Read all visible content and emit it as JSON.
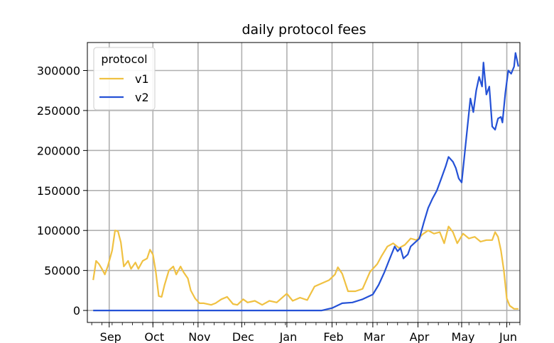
{
  "chart_data": {
    "type": "line",
    "title": "daily protocol fees",
    "xlabel": "",
    "ylabel": "",
    "x_ticks": [
      "Sep",
      "Oct",
      "Nov",
      "Dec",
      "Jan",
      "Feb",
      "Mar",
      "Apr",
      "May",
      "Jun"
    ],
    "y_ticks": [
      "0",
      "50000",
      "100000",
      "150000",
      "200000",
      "250000",
      "300000"
    ],
    "ylim": [
      -15000,
      335000
    ],
    "grid": true,
    "legend": {
      "title": "protocol",
      "placement": "top-left"
    },
    "series": [
      {
        "name": "v1",
        "color": "#f0c142",
        "points": [
          [
            "Aug 21",
            38000
          ],
          [
            "Aug 23",
            62000
          ],
          [
            "Aug 25",
            58000
          ],
          [
            "Aug 27",
            52000
          ],
          [
            "Aug 29",
            45000
          ],
          [
            "Aug 31",
            55000
          ],
          [
            "Sep 3",
            75000
          ],
          [
            "Sep 5",
            100000
          ],
          [
            "Sep 7",
            99000
          ],
          [
            "Sep 9",
            85000
          ],
          [
            "Sep 11",
            55000
          ],
          [
            "Sep 14",
            62000
          ],
          [
            "Sep 16",
            52000
          ],
          [
            "Sep 19",
            60000
          ],
          [
            "Sep 21",
            52000
          ],
          [
            "Sep 24",
            62000
          ],
          [
            "Sep 27",
            65000
          ],
          [
            "Sep 29",
            76000
          ],
          [
            "Oct 1",
            70000
          ],
          [
            "Oct 3",
            48000
          ],
          [
            "Oct 5",
            18000
          ],
          [
            "Oct 7",
            17000
          ],
          [
            "Oct 9",
            32000
          ],
          [
            "Oct 12",
            50000
          ],
          [
            "Oct 15",
            55000
          ],
          [
            "Oct 17",
            45000
          ],
          [
            "Oct 20",
            55000
          ],
          [
            "Oct 22",
            48000
          ],
          [
            "Oct 25",
            40000
          ],
          [
            "Oct 27",
            25000
          ],
          [
            "Oct 30",
            15000
          ],
          [
            "Nov 2",
            9000
          ],
          [
            "Nov 5",
            9000
          ],
          [
            "Nov 10",
            7000
          ],
          [
            "Nov 13",
            9000
          ],
          [
            "Nov 17",
            14000
          ],
          [
            "Nov 21",
            17000
          ],
          [
            "Nov 25",
            8000
          ],
          [
            "Nov 28",
            7000
          ],
          [
            "Dec 2",
            14000
          ],
          [
            "Dec 5",
            10000
          ],
          [
            "Dec 10",
            12000
          ],
          [
            "Dec 15",
            7000
          ],
          [
            "Dec 20",
            12000
          ],
          [
            "Dec 25",
            10000
          ],
          [
            "Dec 30",
            18000
          ],
          [
            "Jan 1",
            21000
          ],
          [
            "Jan 5",
            12000
          ],
          [
            "Jan 10",
            16000
          ],
          [
            "Jan 15",
            13000
          ],
          [
            "Jan 20",
            30000
          ],
          [
            "Jan 25",
            34000
          ],
          [
            "Jan 30",
            38000
          ],
          [
            "Feb 3",
            45000
          ],
          [
            "Feb 5",
            54000
          ],
          [
            "Feb 8",
            46000
          ],
          [
            "Feb 12",
            24000
          ],
          [
            "Feb 17",
            24000
          ],
          [
            "Feb 22",
            27000
          ],
          [
            "Feb 27",
            48000
          ],
          [
            "Mar 4",
            58000
          ],
          [
            "Mar 7",
            68000
          ],
          [
            "Mar 11",
            80000
          ],
          [
            "Mar 15",
            84000
          ],
          [
            "Mar 19",
            78000
          ],
          [
            "Mar 23",
            82000
          ],
          [
            "Mar 27",
            90000
          ],
          [
            "Mar 31",
            88000
          ],
          [
            "Apr 4",
            95000
          ],
          [
            "Apr 8",
            100000
          ],
          [
            "Apr 12",
            96000
          ],
          [
            "Apr 16",
            98000
          ],
          [
            "Apr 19",
            84000
          ],
          [
            "Apr 22",
            105000
          ],
          [
            "Apr 25",
            98000
          ],
          [
            "Apr 28",
            84000
          ],
          [
            "May 2",
            96000
          ],
          [
            "May 6",
            90000
          ],
          [
            "May 10",
            92000
          ],
          [
            "May 14",
            86000
          ],
          [
            "May 18",
            88000
          ],
          [
            "May 22",
            88000
          ],
          [
            "May 24",
            98000
          ],
          [
            "May 26",
            92000
          ],
          [
            "May 28",
            75000
          ],
          [
            "May 30",
            50000
          ],
          [
            "Jun 1",
            15000
          ],
          [
            "Jun 3",
            6000
          ],
          [
            "Jun 6",
            2000
          ],
          [
            "Jun 9",
            2000
          ]
        ]
      },
      {
        "name": "v2",
        "color": "#2451d6",
        "points": [
          [
            "Aug 21",
            0
          ],
          [
            "Jan 25",
            0
          ],
          [
            "Feb 1",
            3000
          ],
          [
            "Feb 8",
            9000
          ],
          [
            "Feb 15",
            10000
          ],
          [
            "Feb 22",
            14000
          ],
          [
            "Mar 1",
            20000
          ],
          [
            "Mar 5",
            32000
          ],
          [
            "Mar 9",
            48000
          ],
          [
            "Mar 12",
            62000
          ],
          [
            "Mar 16",
            80000
          ],
          [
            "Mar 18",
            74000
          ],
          [
            "Mar 20",
            78000
          ],
          [
            "Mar 22",
            65000
          ],
          [
            "Mar 25",
            70000
          ],
          [
            "Mar 27",
            80000
          ],
          [
            "Mar 30",
            85000
          ],
          [
            "Apr 2",
            90000
          ],
          [
            "Apr 5",
            110000
          ],
          [
            "Apr 8",
            128000
          ],
          [
            "Apr 11",
            140000
          ],
          [
            "Apr 14",
            150000
          ],
          [
            "Apr 17",
            165000
          ],
          [
            "Apr 20",
            180000
          ],
          [
            "Apr 22",
            192000
          ],
          [
            "Apr 25",
            186000
          ],
          [
            "Apr 27",
            178000
          ],
          [
            "Apr 29",
            165000
          ],
          [
            "May 1",
            160000
          ],
          [
            "May 3",
            195000
          ],
          [
            "May 5",
            230000
          ],
          [
            "May 7",
            265000
          ],
          [
            "May 9",
            248000
          ],
          [
            "May 11",
            275000
          ],
          [
            "May 13",
            292000
          ],
          [
            "May 15",
            280000
          ],
          [
            "May 16",
            310000
          ],
          [
            "May 18",
            270000
          ],
          [
            "May 20",
            280000
          ],
          [
            "May 22",
            230000
          ],
          [
            "May 24",
            226000
          ],
          [
            "May 26",
            240000
          ],
          [
            "May 28",
            242000
          ],
          [
            "May 29",
            235000
          ],
          [
            "May 31",
            272000
          ],
          [
            "Jun 2",
            300000
          ],
          [
            "Jun 4",
            296000
          ],
          [
            "Jun 6",
            305000
          ],
          [
            "Jun 7",
            322000
          ],
          [
            "Jun 9",
            305000
          ]
        ]
      }
    ]
  }
}
